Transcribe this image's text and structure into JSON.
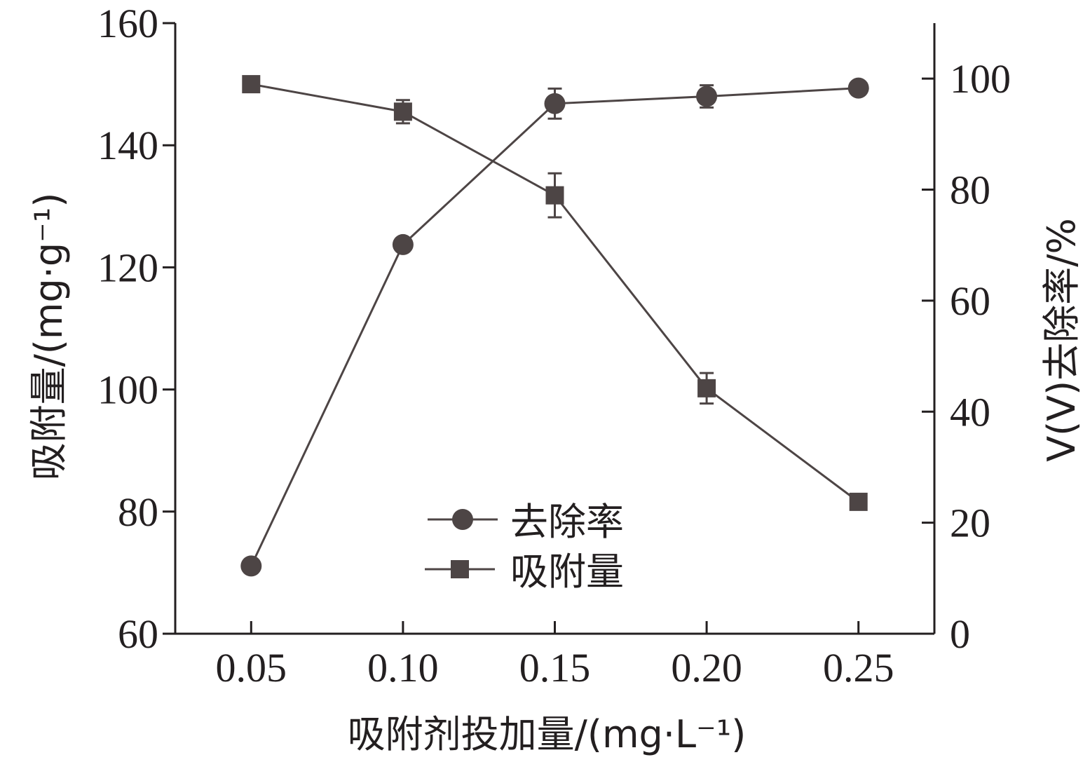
{
  "chart_data": {
    "type": "line",
    "x": [
      0.05,
      0.1,
      0.15,
      0.2,
      0.25
    ],
    "x_tick_labels": [
      "0.05",
      "0.10",
      "0.15",
      "0.20",
      "0.25"
    ],
    "xlim": [
      0.025,
      0.275
    ],
    "xlabel": "吸附剂投加量/(mg·L⁻¹)",
    "ylabel_left": "吸附量/(mg·g⁻¹)",
    "ylabel_right": "V(V)去除率/%",
    "ylim_left": [
      60,
      160
    ],
    "ylim_right": [
      0,
      110
    ],
    "y_ticks_left": [
      "60",
      "80",
      "100",
      "120",
      "140",
      "160"
    ],
    "y_ticks_right": [
      "0",
      "20",
      "40",
      "60",
      "80",
      "100"
    ],
    "series": [
      {
        "name": "去除率",
        "axis": "right",
        "marker": "circle",
        "values": [
          12.2,
          70.1,
          95.5,
          96.8,
          98.3
        ],
        "errors": [
          0,
          0,
          2.7,
          2.0,
          0
        ]
      },
      {
        "name": "吸附量",
        "axis": "left",
        "marker": "square",
        "values": [
          150.0,
          145.5,
          131.8,
          100.2,
          81.6
        ],
        "errors": [
          0,
          1.9,
          3.6,
          2.5,
          0
        ]
      }
    ],
    "legend_position": "center-bottom",
    "grid": false,
    "colors": {
      "axis": "#231f20",
      "series": "#4d4545"
    }
  }
}
